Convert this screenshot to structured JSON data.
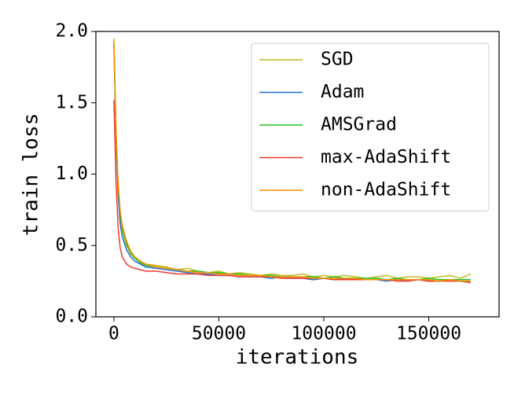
{
  "chart_data": {
    "type": "line",
    "xlabel": "iterations",
    "ylabel": "train loss",
    "x": [
      0,
      1000,
      2000,
      3000,
      4000,
      6000,
      8000,
      10000,
      12500,
      15000,
      20000,
      25000,
      30000,
      35000,
      40000,
      45000,
      50000,
      55000,
      60000,
      65000,
      70000,
      75000,
      80000,
      85000,
      90000,
      95000,
      100000,
      105000,
      110000,
      115000,
      120000,
      125000,
      130000,
      135000,
      140000,
      145000,
      150000,
      155000,
      160000,
      165000,
      170000
    ],
    "series": [
      {
        "name": "SGD",
        "color": "#bcbd22",
        "values": [
          1.95,
          1.3,
          0.9,
          0.7,
          0.6,
          0.5,
          0.44,
          0.41,
          0.39,
          0.37,
          0.36,
          0.35,
          0.33,
          0.34,
          0.32,
          0.31,
          0.32,
          0.3,
          0.31,
          0.3,
          0.29,
          0.3,
          0.29,
          0.29,
          0.3,
          0.28,
          0.29,
          0.28,
          0.29,
          0.28,
          0.27,
          0.28,
          0.29,
          0.27,
          0.28,
          0.28,
          0.27,
          0.28,
          0.29,
          0.27,
          0.3
        ]
      },
      {
        "name": "Adam",
        "color": "#1f6fd0",
        "values": [
          1.9,
          1.25,
          0.85,
          0.65,
          0.56,
          0.47,
          0.42,
          0.39,
          0.37,
          0.35,
          0.34,
          0.33,
          0.32,
          0.31,
          0.3,
          0.3,
          0.29,
          0.29,
          0.28,
          0.28,
          0.28,
          0.27,
          0.28,
          0.27,
          0.27,
          0.26,
          0.27,
          0.26,
          0.27,
          0.26,
          0.26,
          0.26,
          0.25,
          0.26,
          0.25,
          0.26,
          0.25,
          0.25,
          0.26,
          0.25,
          0.24
        ]
      },
      {
        "name": "AMSGrad",
        "color": "#22c422",
        "values": [
          1.92,
          1.28,
          0.92,
          0.72,
          0.62,
          0.51,
          0.45,
          0.41,
          0.38,
          0.36,
          0.35,
          0.34,
          0.33,
          0.32,
          0.32,
          0.31,
          0.31,
          0.3,
          0.3,
          0.29,
          0.29,
          0.29,
          0.28,
          0.28,
          0.28,
          0.28,
          0.27,
          0.28,
          0.27,
          0.27,
          0.27,
          0.27,
          0.26,
          0.27,
          0.26,
          0.26,
          0.27,
          0.26,
          0.26,
          0.26,
          0.26
        ]
      },
      {
        "name": "max-AdaShift",
        "color": "#f03a2a",
        "values": [
          1.52,
          0.95,
          0.62,
          0.48,
          0.42,
          0.37,
          0.35,
          0.34,
          0.33,
          0.32,
          0.32,
          0.31,
          0.3,
          0.3,
          0.3,
          0.29,
          0.29,
          0.29,
          0.28,
          0.28,
          0.28,
          0.28,
          0.27,
          0.27,
          0.27,
          0.27,
          0.27,
          0.26,
          0.26,
          0.26,
          0.26,
          0.26,
          0.26,
          0.25,
          0.25,
          0.26,
          0.25,
          0.25,
          0.25,
          0.25,
          0.24
        ]
      },
      {
        "name": "non-AdaShift",
        "color": "#ff8c00",
        "values": [
          1.93,
          1.3,
          0.95,
          0.74,
          0.64,
          0.53,
          0.46,
          0.42,
          0.39,
          0.37,
          0.35,
          0.34,
          0.33,
          0.32,
          0.31,
          0.31,
          0.3,
          0.3,
          0.29,
          0.29,
          0.29,
          0.28,
          0.28,
          0.28,
          0.28,
          0.27,
          0.27,
          0.27,
          0.27,
          0.27,
          0.26,
          0.26,
          0.26,
          0.26,
          0.26,
          0.26,
          0.26,
          0.25,
          0.26,
          0.25,
          0.25
        ]
      }
    ],
    "xlim": [
      -8600,
      183500
    ],
    "ylim": [
      0,
      2
    ],
    "xticks": [
      0,
      50000,
      100000,
      150000
    ],
    "yticks": [
      {
        "value": 0,
        "label": "0.0"
      },
      {
        "value": 0.5,
        "label": "0.5"
      },
      {
        "value": 1,
        "label": "1.0"
      },
      {
        "value": 1.5,
        "label": "1.5"
      },
      {
        "value": 2,
        "label": "2.0"
      }
    ],
    "legend": "upper right"
  }
}
